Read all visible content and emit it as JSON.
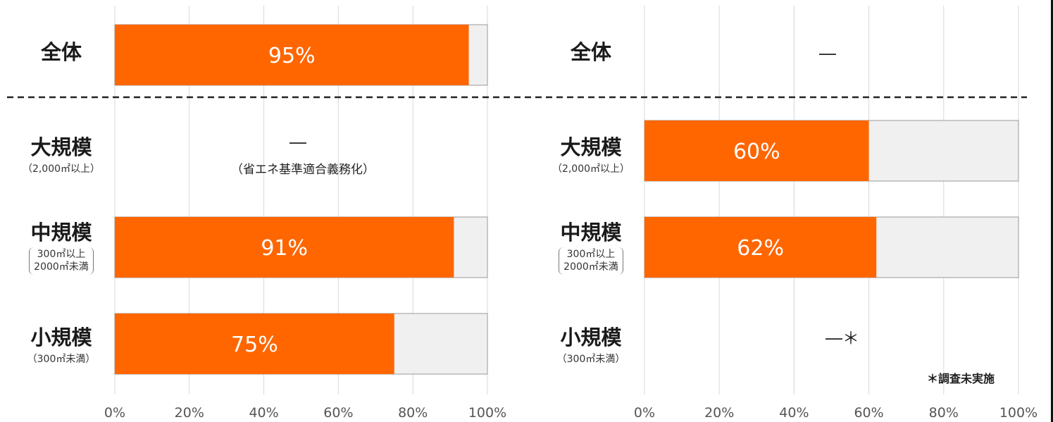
{
  "chart_data": [
    {
      "type": "bar",
      "orientation": "horizontal",
      "stacked": true,
      "categories": [
        "全体",
        "大規模",
        "中規模",
        "小規模"
      ],
      "values": [
        95,
        null,
        91,
        75
      ],
      "value_labels": [
        "95%",
        "",
        "91%",
        "75%"
      ],
      "xlim": [
        0,
        100
      ],
      "xticks": [
        "0%",
        "20%",
        "40%",
        "60%",
        "80%",
        "100%"
      ],
      "grid": true,
      "missing_note": "省エネ基準適合義務化",
      "colors": {
        "bar": "#ff6600",
        "remainder": "#f0f0f0",
        "grid": "#d9d9d9"
      }
    },
    {
      "type": "bar",
      "orientation": "horizontal",
      "stacked": true,
      "categories": [
        "全体",
        "大規模",
        "中規模",
        "小規模"
      ],
      "values": [
        null,
        60,
        62,
        null
      ],
      "value_labels": [
        "",
        "60%",
        "62%",
        ""
      ],
      "xlim": [
        0,
        100
      ],
      "xticks": [
        "0%",
        "20%",
        "40%",
        "60%",
        "80%",
        "100%"
      ],
      "grid": true,
      "footnote": "＊調査未実施",
      "colors": {
        "bar": "#ff6600",
        "remainder": "#f0f0f0",
        "grid": "#d9d9d9"
      }
    }
  ],
  "labels": {
    "overall": "全体",
    "large": "大規模",
    "large_sub": "（2,000㎡以上）",
    "medium": "中規模",
    "medium_sub1": "300㎡以上",
    "medium_sub2": "2000㎡未満",
    "small": "小規模",
    "small_sub": "（300㎡未満）"
  },
  "dash": "―",
  "not_surveyed_dash": "―＊",
  "mandatory_note": "（省エネ基準適合義務化）",
  "footnote": "＊調査未実施"
}
